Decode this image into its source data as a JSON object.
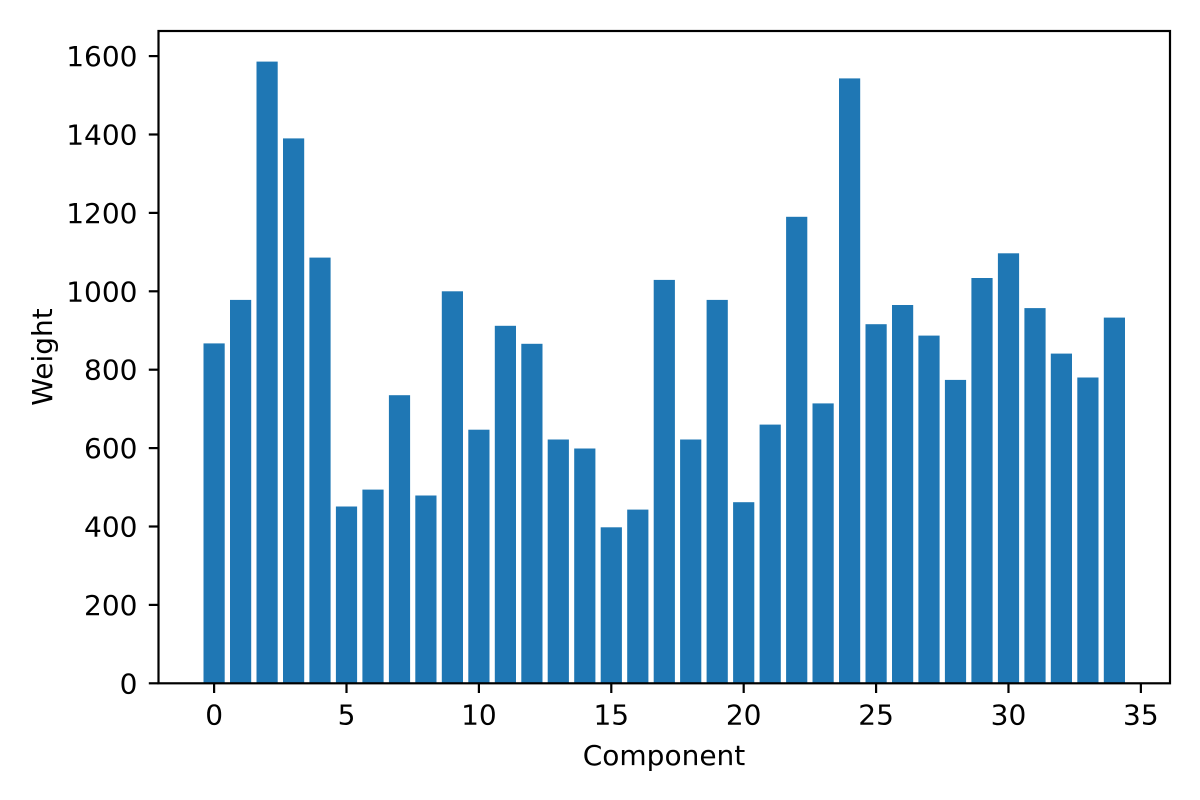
{
  "figure": {
    "background": "#ffffff",
    "axis_color": "#000000",
    "text_color": "#000000",
    "bar_color": "#1f77b4"
  },
  "chart_data": {
    "type": "bar",
    "title": "",
    "xlabel": "Component",
    "ylabel": "Weight",
    "x": [
      0,
      1,
      2,
      3,
      4,
      5,
      6,
      7,
      8,
      9,
      10,
      11,
      12,
      13,
      14,
      15,
      16,
      17,
      18,
      19,
      20,
      21,
      22,
      23,
      24,
      25,
      26,
      27,
      28,
      29,
      30,
      31,
      32,
      33,
      34
    ],
    "values": [
      867,
      978,
      1586,
      1390,
      1086,
      451,
      494,
      735,
      479,
      1000,
      647,
      912,
      866,
      622,
      599,
      398,
      443,
      1029,
      622,
      978,
      462,
      660,
      1190,
      714,
      1543,
      916,
      965,
      887,
      774,
      1034,
      1097,
      957,
      841,
      780,
      933
    ],
    "bar_width": 0.8,
    "bar_color": "#1f77b4",
    "xlim": [
      -2.1,
      36.1
    ],
    "ylim": [
      0,
      1664
    ],
    "xticks": [
      0,
      5,
      10,
      15,
      20,
      25,
      30,
      35
    ],
    "yticks": [
      0,
      200,
      400,
      600,
      800,
      1000,
      1200,
      1400,
      1600
    ],
    "grid": false,
    "legend": null
  }
}
